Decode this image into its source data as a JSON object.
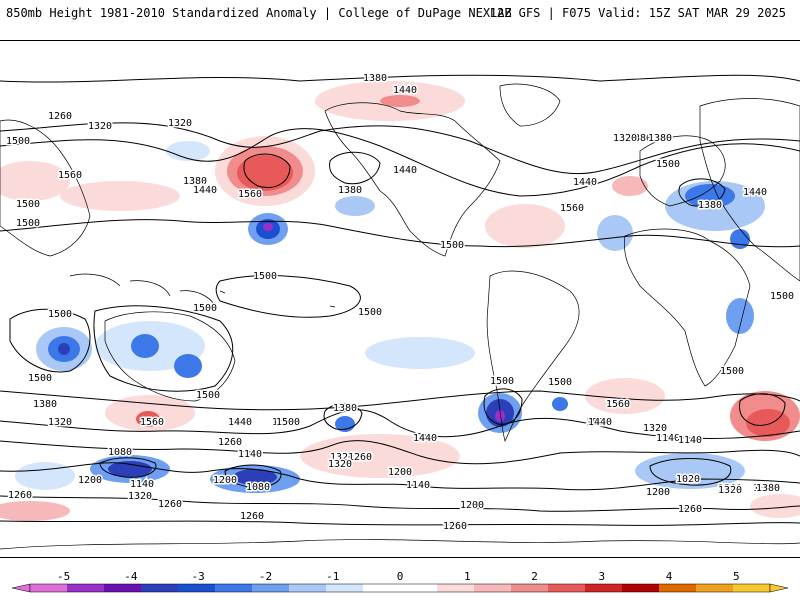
{
  "header": {
    "title_left": "850mb Height 1981-2010 Standardized Anomaly | College of DuPage NEXLAB",
    "title_right": "12Z GFS | F075 Valid: 15Z SAT MAR 29 2025"
  },
  "colors": {
    "neg5": "#e070d8",
    "neg4_5": "#9a2fc9",
    "neg4": "#6a10b0",
    "neg3_5": "#2a3fb8",
    "neg3": "#1c4fd0",
    "neg2_5": "#3c78e8",
    "neg2": "#6e9ff0",
    "neg1_5": "#a9c8f5",
    "neg1": "#d4e6fb",
    "pos1": "#fbdada",
    "pos1_5": "#f6b8b8",
    "pos2": "#f08c8c",
    "pos2_5": "#e85a5a",
    "pos3": "#d02424",
    "pos3_5": "#b00000",
    "pos4": "#e06a00",
    "pos4_5": "#f0a020",
    "pos5": "#f8c830"
  },
  "colorbar": {
    "ticks": [
      "-5",
      "-4",
      "-3",
      "-2",
      "-1",
      "0",
      "1",
      "2",
      "3",
      "4",
      "5"
    ]
  },
  "contour_labels": [
    {
      "text": "1380"
    },
    {
      "text": "1440"
    },
    {
      "text": "1260"
    },
    {
      "text": "1320"
    },
    {
      "text": "1320"
    },
    {
      "text": "1500"
    },
    {
      "text": "1560"
    },
    {
      "text": "1380"
    },
    {
      "text": "1440"
    },
    {
      "text": "1500"
    },
    {
      "text": "1500"
    },
    {
      "text": "1560"
    },
    {
      "text": "1380"
    },
    {
      "text": "1440"
    },
    {
      "text": "1560"
    },
    {
      "text": "1500"
    },
    {
      "text": "1500"
    },
    {
      "text": "1500"
    },
    {
      "text": "1500"
    },
    {
      "text": "1500"
    },
    {
      "text": "1380"
    },
    {
      "text": "1320"
    },
    {
      "text": "1440"
    },
    {
      "text": "1380"
    },
    {
      "text": "1500"
    },
    {
      "text": "1380"
    },
    {
      "text": "1440"
    },
    {
      "text": "1500"
    },
    {
      "text": "1500"
    },
    {
      "text": "1500"
    },
    {
      "text": "1500"
    },
    {
      "text": "1500"
    },
    {
      "text": "1380"
    },
    {
      "text": "1320"
    },
    {
      "text": "1560"
    },
    {
      "text": "1500"
    },
    {
      "text": "1440"
    },
    {
      "text": "1500"
    },
    {
      "text": "1380"
    },
    {
      "text": "1440"
    },
    {
      "text": "1500"
    },
    {
      "text": "1560"
    },
    {
      "text": "1440"
    },
    {
      "text": "1320"
    },
    {
      "text": "1140"
    },
    {
      "text": "1260"
    },
    {
      "text": "1140"
    },
    {
      "text": "1320"
    },
    {
      "text": "1260"
    },
    {
      "text": "1200"
    },
    {
      "text": "1080"
    },
    {
      "text": "1200"
    },
    {
      "text": "1140"
    },
    {
      "text": "1320"
    },
    {
      "text": "1260"
    },
    {
      "text": "1080"
    },
    {
      "text": "1200"
    },
    {
      "text": "1200"
    },
    {
      "text": "1380"
    },
    {
      "text": "1260"
    },
    {
      "text": "1140"
    },
    {
      "text": "1200"
    },
    {
      "text": "1260"
    },
    {
      "text": "1020"
    },
    {
      "text": "1200"
    },
    {
      "text": "1320"
    },
    {
      "text": "1380"
    },
    {
      "text": "1260"
    },
    {
      "text": "1260"
    },
    {
      "text": "1140"
    },
    {
      "text": "1320"
    },
    {
      "text": "1500"
    }
  ]
}
